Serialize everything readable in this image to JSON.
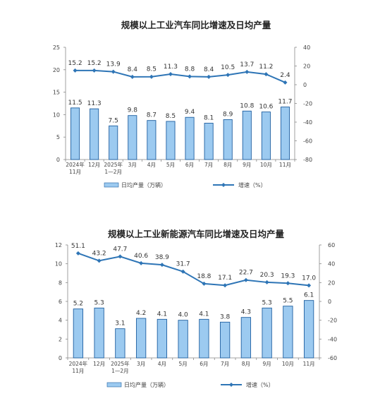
{
  "chart_data": [
    {
      "type": "bar",
      "title": "规模以上工业汽车同比增速及日均产量",
      "categories": [
        [
          "2024年",
          "11月"
        ],
        [
          "12月"
        ],
        [
          "2025年",
          "1—2月"
        ],
        [
          "3月"
        ],
        [
          "4月"
        ],
        [
          "5月"
        ],
        [
          "6月"
        ],
        [
          "7月"
        ],
        [
          "8月"
        ],
        [
          "9月"
        ],
        [
          "10月"
        ],
        [
          "11月"
        ]
      ],
      "series": [
        {
          "name": "日均产量（万辆）",
          "type": "bar",
          "axis": "left",
          "values": [
            11.5,
            11.3,
            7.5,
            9.8,
            8.7,
            8.5,
            9.4,
            8.1,
            8.9,
            10.8,
            10.6,
            11.7
          ],
          "labels": [
            "11.5",
            "11.3",
            "7.5",
            "9.8",
            "8.7",
            "8.5",
            "9.4",
            "8.1",
            "8.9",
            "10.8",
            "10.6",
            "11.7"
          ]
        },
        {
          "name": "增速（%）",
          "type": "line",
          "axis": "right",
          "values": [
            15.2,
            15.2,
            13.9,
            8.4,
            8.5,
            11.3,
            8.8,
            8.4,
            10.5,
            13.7,
            11.2,
            2.4
          ],
          "labels": [
            "15.2",
            "15.2",
            "13.9",
            "8.4",
            "8.5",
            "11.3",
            "8.8",
            "8.4",
            "10.5",
            "13.7",
            "11.2",
            "2.4"
          ]
        }
      ],
      "y_left": {
        "min": 0,
        "max": 25,
        "ticks": [
          "0",
          "5",
          "10",
          "15",
          "20",
          "25"
        ]
      },
      "y_right": {
        "min": -80,
        "max": 40,
        "ticks": [
          "-80",
          "-60",
          "-40",
          "-20",
          "0",
          "20",
          "40"
        ]
      },
      "legend_position": "bottom",
      "colors": {
        "bar_fill": "#9ccaf0",
        "bar_stroke": "#1f5fa0",
        "line": "#2e75b6"
      }
    },
    {
      "type": "bar",
      "title": "规模以上工业新能源汽车同比增速及日均产量",
      "categories": [
        [
          "2024年",
          "11月"
        ],
        [
          "12月"
        ],
        [
          "2025年",
          "1—2月"
        ],
        [
          "3月"
        ],
        [
          "4月"
        ],
        [
          "5月"
        ],
        [
          "6月"
        ],
        [
          "7月"
        ],
        [
          "8月"
        ],
        [
          "9月"
        ],
        [
          "10月"
        ],
        [
          "11月"
        ]
      ],
      "series": [
        {
          "name": "日均产量（万辆）",
          "type": "bar",
          "axis": "left",
          "values": [
            5.2,
            5.3,
            3.1,
            4.2,
            4.1,
            4.0,
            4.1,
            3.8,
            4.3,
            5.3,
            5.5,
            6.1
          ],
          "labels": [
            "5.2",
            "5.3",
            "3.1",
            "4.2",
            "4.1",
            "4.0",
            "4.1",
            "3.8",
            "4.3",
            "5.3",
            "5.5",
            "6.1"
          ]
        },
        {
          "name": "增速（%）",
          "type": "line",
          "axis": "right",
          "values": [
            51.1,
            43.2,
            47.7,
            40.6,
            38.9,
            31.7,
            18.8,
            17.1,
            22.7,
            20.3,
            19.3,
            17.0
          ],
          "labels": [
            "51.1",
            "43.2",
            "47.7",
            "40.6",
            "38.9",
            "31.7",
            "18.8",
            "17.1",
            "22.7",
            "20.3",
            "19.3",
            "17.0"
          ]
        }
      ],
      "y_left": {
        "min": 0,
        "max": 12,
        "ticks": [
          "0",
          "2",
          "4",
          "6",
          "8",
          "10",
          "12"
        ]
      },
      "y_right": {
        "min": -60,
        "max": 60,
        "ticks": [
          "-60",
          "-40",
          "-20",
          "0",
          "20",
          "40",
          "60"
        ]
      },
      "legend_position": "bottom",
      "colors": {
        "bar_fill": "#9ccaf0",
        "bar_stroke": "#1f5fa0",
        "line": "#2e75b6"
      }
    }
  ]
}
